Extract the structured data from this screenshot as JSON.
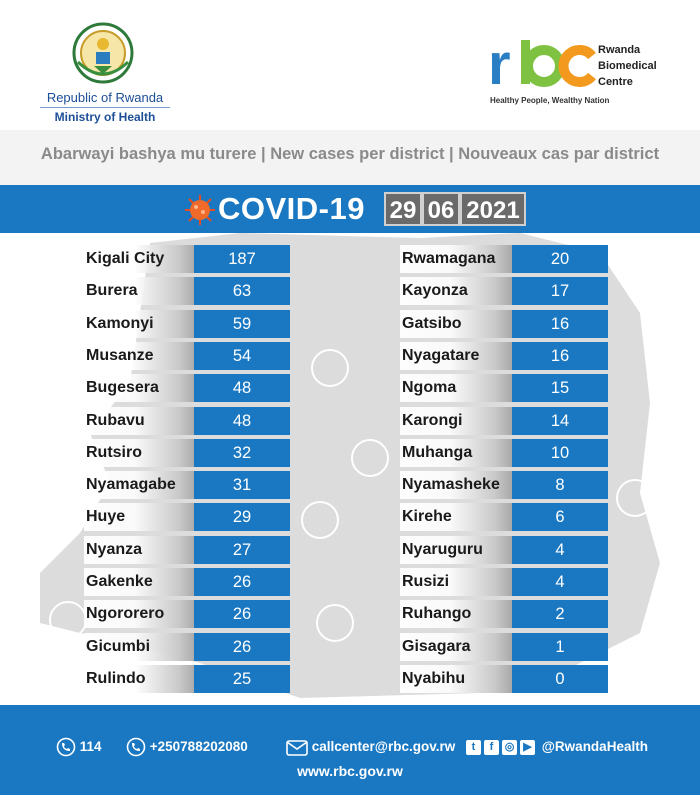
{
  "header": {
    "republic": "Republic of Rwanda",
    "ministry": "Ministry of Health",
    "rbc_logo_text": "rbc",
    "rbc_name": [
      "Rwanda",
      "Biomedical",
      "Centre"
    ],
    "rbc_slogan": "Healthy People, Wealthy Nation"
  },
  "subtitle": "Abarwayi bashya mu turere | New cases per district | Nouveaux cas par district",
  "banner": {
    "title": "COVID-19",
    "date": {
      "day": "29",
      "month": "06",
      "year": "2021"
    }
  },
  "districts_left": [
    {
      "name": "Kigali City",
      "cases": "187"
    },
    {
      "name": "Burera",
      "cases": "63"
    },
    {
      "name": "Kamonyi",
      "cases": "59"
    },
    {
      "name": "Musanze",
      "cases": "54"
    },
    {
      "name": "Bugesera",
      "cases": "48"
    },
    {
      "name": "Rubavu",
      "cases": "48"
    },
    {
      "name": "Rutsiro",
      "cases": "32"
    },
    {
      "name": "Nyamagabe",
      "cases": "31"
    },
    {
      "name": "Huye",
      "cases": "29"
    },
    {
      "name": "Nyanza",
      "cases": "27"
    },
    {
      "name": "Gakenke",
      "cases": "26"
    },
    {
      "name": "Ngororero",
      "cases": "26"
    },
    {
      "name": "Gicumbi",
      "cases": "26"
    },
    {
      "name": "Rulindo",
      "cases": "25"
    }
  ],
  "districts_right": [
    {
      "name": "Rwamagana",
      "cases": "20"
    },
    {
      "name": "Kayonza",
      "cases": "17"
    },
    {
      "name": "Gatsibo",
      "cases": "16"
    },
    {
      "name": "Nyagatare",
      "cases": "16"
    },
    {
      "name": "Ngoma",
      "cases": "15"
    },
    {
      "name": "Karongi",
      "cases": "14"
    },
    {
      "name": "Muhanga",
      "cases": "10"
    },
    {
      "name": "Nyamasheke",
      "cases": "8"
    },
    {
      "name": "Kirehe",
      "cases": "6"
    },
    {
      "name": "Nyaruguru",
      "cases": "4"
    },
    {
      "name": "Rusizi",
      "cases": "4"
    },
    {
      "name": "Ruhango",
      "cases": "2"
    },
    {
      "name": "Gisagara",
      "cases": "1"
    },
    {
      "name": "Nyabihu",
      "cases": "0"
    }
  ],
  "footer": {
    "phone1": "114",
    "phone2": "+250788202080",
    "email": "callcenter@rbc.gov.rw",
    "social_handle": "@RwandaHealth",
    "website": "www.rbc.gov.rw"
  },
  "colors": {
    "blue": "#1a78c2",
    "rbc_blue": "#2a7ec4",
    "rbc_green": "#7fc241",
    "rbc_orange": "#f39a1e"
  },
  "icons": [
    "coat-of-arms-icon",
    "virus-icon",
    "phone-icon",
    "email-icon",
    "twitter-icon",
    "facebook-icon",
    "instagram-icon",
    "youtube-icon"
  ]
}
